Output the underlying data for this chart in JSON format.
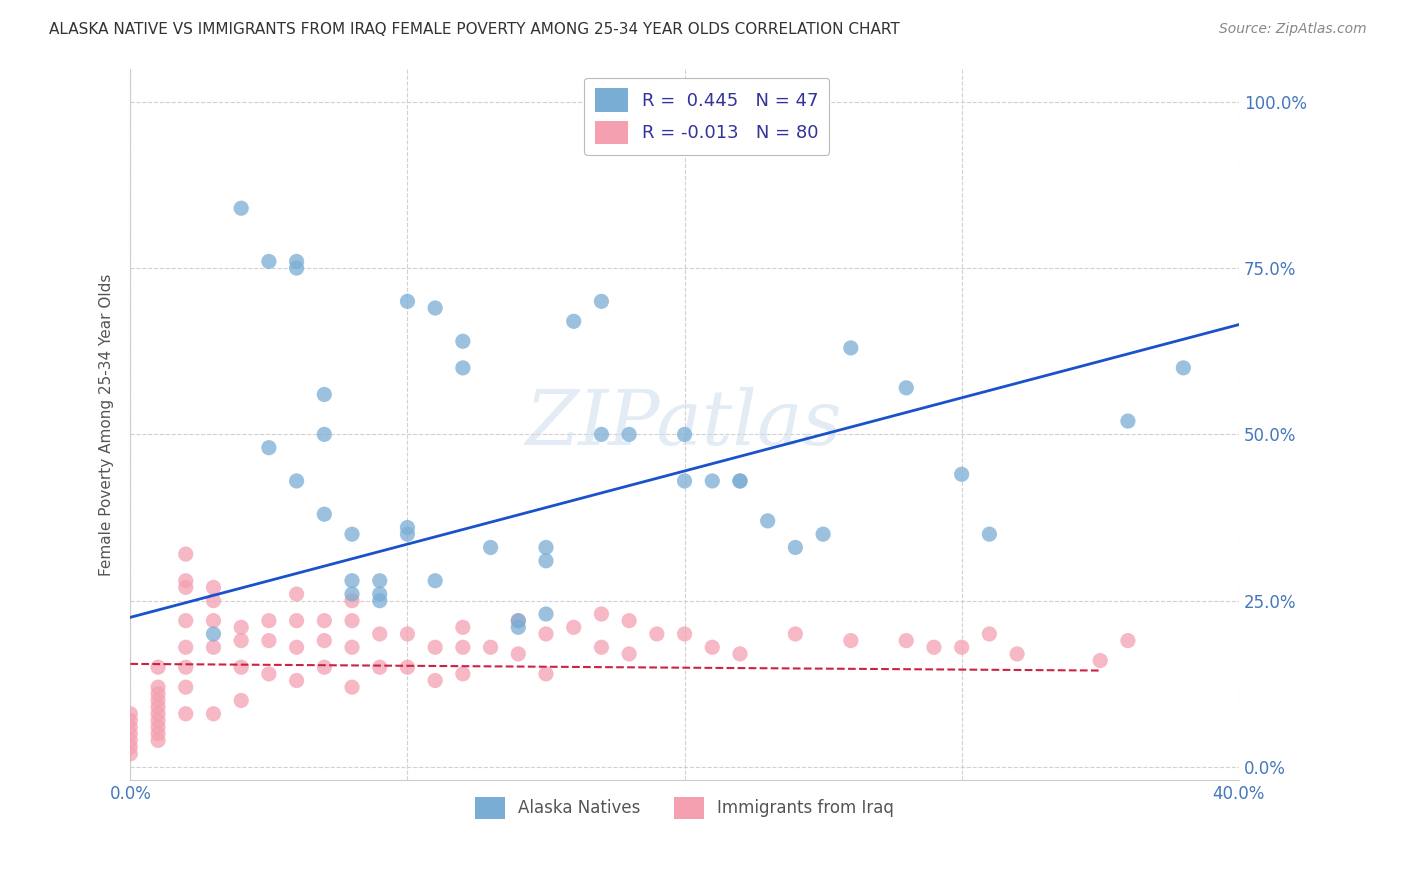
{
  "title": "ALASKA NATIVE VS IMMIGRANTS FROM IRAQ FEMALE POVERTY AMONG 25-34 YEAR OLDS CORRELATION CHART",
  "source": "Source: ZipAtlas.com",
  "ylabel": "Female Poverty Among 25-34 Year Olds",
  "xlim": [
    0.0,
    0.4
  ],
  "ylim": [
    -0.02,
    1.05
  ],
  "background_color": "#ffffff",
  "grid_color": "#cccccc",
  "watermark": "ZIPatlas",
  "color_blue": "#7aadd4",
  "color_pink": "#f4a0b0",
  "line_color_blue": "#1a52cc",
  "line_color_pink": "#cc2244",
  "alaska_x": [
    0.04,
    0.05,
    0.06,
    0.06,
    0.07,
    0.07,
    0.08,
    0.08,
    0.09,
    0.09,
    0.1,
    0.1,
    0.11,
    0.12,
    0.13,
    0.14,
    0.15,
    0.15,
    0.16,
    0.17,
    0.18,
    0.2,
    0.21,
    0.22,
    0.23,
    0.24,
    0.25,
    0.26,
    0.28,
    0.3,
    0.31,
    0.36,
    0.38,
    0.03,
    0.05,
    0.06,
    0.07,
    0.08,
    0.09,
    0.1,
    0.11,
    0.12,
    0.14,
    0.15,
    0.17,
    0.2,
    0.22
  ],
  "alaska_y": [
    0.84,
    0.76,
    0.75,
    0.76,
    0.5,
    0.56,
    0.35,
    0.28,
    0.28,
    0.26,
    0.36,
    0.35,
    0.28,
    0.6,
    0.33,
    0.22,
    0.23,
    0.31,
    0.67,
    0.7,
    0.5,
    0.5,
    0.43,
    0.43,
    0.37,
    0.33,
    0.35,
    0.63,
    0.57,
    0.44,
    0.35,
    0.52,
    0.6,
    0.2,
    0.48,
    0.43,
    0.38,
    0.26,
    0.25,
    0.7,
    0.69,
    0.64,
    0.21,
    0.33,
    0.5,
    0.43,
    0.43
  ],
  "iraq_x": [
    0.0,
    0.0,
    0.0,
    0.0,
    0.0,
    0.0,
    0.0,
    0.01,
    0.01,
    0.01,
    0.01,
    0.01,
    0.01,
    0.01,
    0.01,
    0.01,
    0.01,
    0.02,
    0.02,
    0.02,
    0.02,
    0.02,
    0.02,
    0.02,
    0.02,
    0.03,
    0.03,
    0.03,
    0.03,
    0.03,
    0.04,
    0.04,
    0.04,
    0.04,
    0.05,
    0.05,
    0.05,
    0.06,
    0.06,
    0.06,
    0.06,
    0.07,
    0.07,
    0.07,
    0.08,
    0.08,
    0.08,
    0.08,
    0.09,
    0.09,
    0.1,
    0.1,
    0.11,
    0.11,
    0.12,
    0.12,
    0.12,
    0.13,
    0.14,
    0.14,
    0.15,
    0.15,
    0.16,
    0.17,
    0.17,
    0.18,
    0.18,
    0.19,
    0.2,
    0.21,
    0.22,
    0.24,
    0.26,
    0.28,
    0.29,
    0.3,
    0.31,
    0.32,
    0.35,
    0.36
  ],
  "iraq_y": [
    0.08,
    0.07,
    0.06,
    0.05,
    0.04,
    0.03,
    0.02,
    0.12,
    0.11,
    0.1,
    0.09,
    0.08,
    0.07,
    0.06,
    0.05,
    0.04,
    0.15,
    0.32,
    0.28,
    0.27,
    0.22,
    0.18,
    0.15,
    0.12,
    0.08,
    0.27,
    0.25,
    0.22,
    0.18,
    0.08,
    0.21,
    0.19,
    0.15,
    0.1,
    0.22,
    0.19,
    0.14,
    0.26,
    0.22,
    0.18,
    0.13,
    0.22,
    0.19,
    0.15,
    0.25,
    0.22,
    0.18,
    0.12,
    0.2,
    0.15,
    0.2,
    0.15,
    0.18,
    0.13,
    0.21,
    0.18,
    0.14,
    0.18,
    0.22,
    0.17,
    0.2,
    0.14,
    0.21,
    0.23,
    0.18,
    0.22,
    0.17,
    0.2,
    0.2,
    0.18,
    0.17,
    0.2,
    0.19,
    0.19,
    0.18,
    0.18,
    0.2,
    0.17,
    0.16,
    0.19
  ],
  "blue_line_x": [
    0.0,
    0.4
  ],
  "blue_line_y": [
    0.225,
    0.665
  ],
  "pink_line_x": [
    0.0,
    0.35
  ],
  "pink_line_y": [
    0.155,
    0.145
  ]
}
